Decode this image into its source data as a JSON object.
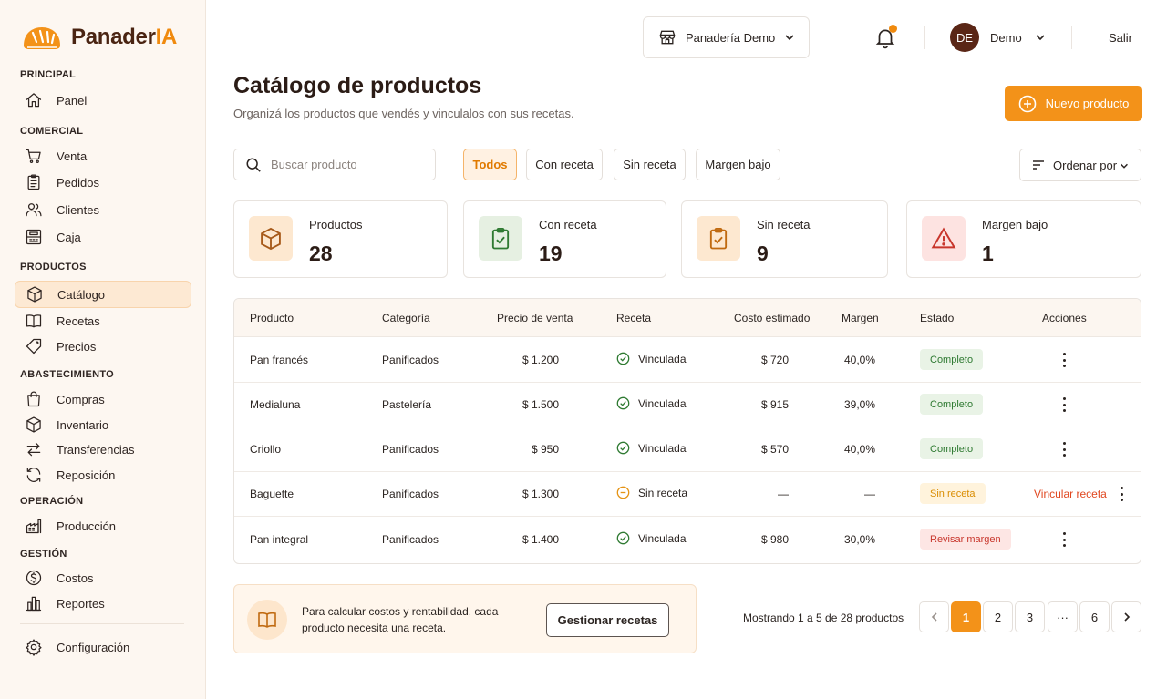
{
  "brand": {
    "name_main": "Panader",
    "name_accent": "IA"
  },
  "sidebar": {
    "sections": [
      {
        "title": "PRINCIPAL",
        "items": [
          {
            "label": "Panel",
            "icon": "home-icon"
          }
        ]
      },
      {
        "title": "COMERCIAL",
        "items": [
          {
            "label": "Venta",
            "icon": "cart-icon"
          },
          {
            "label": "Pedidos",
            "icon": "clipboard-icon"
          },
          {
            "label": "Clientes",
            "icon": "users-icon"
          },
          {
            "label": "Caja",
            "icon": "register-icon"
          }
        ]
      },
      {
        "title": "PRODUCTOS",
        "items": [
          {
            "label": "Catálogo",
            "icon": "box-icon",
            "active": true
          },
          {
            "label": "Recetas",
            "icon": "book-icon"
          },
          {
            "label": "Precios",
            "icon": "tag-icon"
          }
        ]
      },
      {
        "title": "ABASTECIMIENTO",
        "items": [
          {
            "label": "Compras",
            "icon": "bag-icon"
          },
          {
            "label": "Inventario",
            "icon": "cube-icon"
          },
          {
            "label": "Transferencias",
            "icon": "transfer-icon"
          },
          {
            "label": "Reposición",
            "icon": "refresh-icon"
          }
        ]
      },
      {
        "title": "OPERACIÓN",
        "items": [
          {
            "label": "Producción",
            "icon": "factory-icon"
          }
        ]
      },
      {
        "title": "GESTIÓN",
        "items": [
          {
            "label": "Costos",
            "icon": "dollar-icon"
          },
          {
            "label": "Reportes",
            "icon": "bar-chart-icon"
          }
        ]
      }
    ],
    "settings": {
      "label": "Configuración",
      "icon": "gear-icon"
    }
  },
  "topbar": {
    "store": "Panadería Demo",
    "user_initials": "DE",
    "user_name": "Demo",
    "logout": "Salir"
  },
  "header": {
    "title": "Catálogo de productos",
    "subtitle": "Organizá los productos que vendés y vinculalos con sus recetas.",
    "new_button": "Nuevo producto"
  },
  "filters": {
    "search_placeholder": "Buscar producto",
    "chips": [
      "Todos",
      "Con receta",
      "Sin receta",
      "Margen bajo"
    ],
    "active_chip": "Todos",
    "sort_label": "Ordenar por"
  },
  "stats": [
    {
      "label": "Productos",
      "value": "28",
      "icon": "box-icon"
    },
    {
      "label": "Con receta",
      "value": "19",
      "icon": "clipboard-check-icon"
    },
    {
      "label": "Sin receta",
      "value": "9",
      "icon": "clipboard-check-icon"
    },
    {
      "label": "Margen bajo",
      "value": "1",
      "icon": "warning-icon"
    }
  ],
  "table": {
    "columns": [
      "Producto",
      "Categoría",
      "Precio de venta",
      "Receta",
      "Costo estimado",
      "Margen",
      "Estado",
      "Acciones"
    ],
    "rows": [
      {
        "product": "Pan francés",
        "category": "Panificados",
        "price": "$ 1.200",
        "recipe": "Vinculada",
        "recipe_ok": true,
        "cost": "$ 720",
        "margin": "40,0%",
        "status": "Completo",
        "status_type": "ok",
        "action": ""
      },
      {
        "product": "Medialuna",
        "category": "Pastelería",
        "price": "$ 1.500",
        "recipe": "Vinculada",
        "recipe_ok": true,
        "cost": "$ 915",
        "margin": "39,0%",
        "status": "Completo",
        "status_type": "ok",
        "action": ""
      },
      {
        "product": "Criollo",
        "category": "Panificados",
        "price": "$ 950",
        "recipe": "Vinculada",
        "recipe_ok": true,
        "cost": "$ 570",
        "margin": "40,0%",
        "status": "Completo",
        "status_type": "ok",
        "action": ""
      },
      {
        "product": "Baguette",
        "category": "Panificados",
        "price": "$ 1.300",
        "recipe": "Sin receta",
        "recipe_ok": false,
        "cost": "—",
        "margin": "—",
        "status": "Sin receta",
        "status_type": "warn",
        "action": "Vincular receta"
      },
      {
        "product": "Pan integral",
        "category": "Panificados",
        "price": "$ 1.400",
        "recipe": "Vinculada",
        "recipe_ok": true,
        "cost": "$ 980",
        "margin": "30,0%",
        "status": "Revisar margen",
        "status_type": "bad",
        "action": ""
      }
    ]
  },
  "footer": {
    "info_text": "Para calcular costos y rentabilidad, cada producto necesita una receta.",
    "info_button": "Gestionar recetas",
    "showing": "Mostrando 1 a 5 de 28 productos",
    "pages": [
      "1",
      "2",
      "3",
      "···",
      "6"
    ],
    "current_page": "1"
  },
  "colors": {
    "accent": "#f39219",
    "brand_dark": "#4a2412",
    "ok": "#2f7a32",
    "warn": "#d98c00",
    "bad": "#c8362c"
  }
}
